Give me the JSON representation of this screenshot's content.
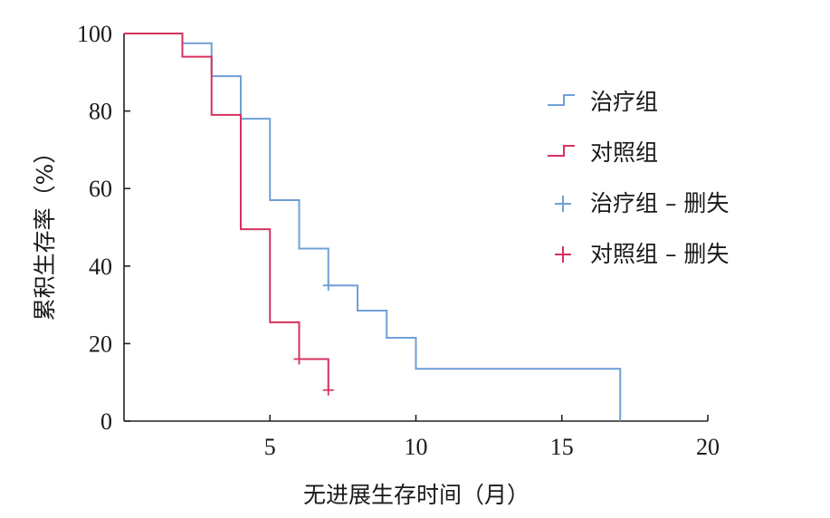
{
  "chart_data": {
    "type": "line",
    "subtype": "kaplan-meier step",
    "title": "",
    "xlabel": "无进展生存时间（月）",
    "ylabel": "累积生存率（%）",
    "xlim": [
      0,
      20
    ],
    "ylim": [
      0,
      100
    ],
    "xticks": [
      5,
      10,
      15,
      20
    ],
    "yticks": [
      0,
      20,
      40,
      60,
      80,
      100
    ],
    "grid": false,
    "legend_position": "top-right",
    "series": [
      {
        "name": "治疗组",
        "color": "#6f9fd6",
        "steps": [
          [
            0,
            100
          ],
          [
            2,
            97.5
          ],
          [
            3,
            89
          ],
          [
            4,
            78
          ],
          [
            5,
            57
          ],
          [
            6,
            44.5
          ],
          [
            7,
            35
          ],
          [
            8,
            28.5
          ],
          [
            9,
            21.5
          ],
          [
            10,
            13.5
          ],
          [
            17,
            0
          ]
        ],
        "censored": [
          [
            7,
            35
          ]
        ]
      },
      {
        "name": "对照组",
        "color": "#d6325f",
        "steps": [
          [
            0,
            100
          ],
          [
            2,
            94
          ],
          [
            3,
            79
          ],
          [
            4,
            49.5
          ],
          [
            5,
            25.5
          ],
          [
            6,
            16
          ],
          [
            7,
            8
          ]
        ],
        "end_x": 7,
        "censored": [
          [
            6,
            16
          ],
          [
            7,
            8
          ]
        ]
      }
    ],
    "legend": [
      {
        "label": "治疗组",
        "kind": "step",
        "color": "#6f9fd6"
      },
      {
        "label": "对照组",
        "kind": "step",
        "color": "#d6325f"
      },
      {
        "label": "治疗组 – 删失",
        "kind": "cross",
        "color": "#6f9fd6"
      },
      {
        "label": "对照组 – 删失",
        "kind": "cross",
        "color": "#d6325f"
      }
    ]
  }
}
